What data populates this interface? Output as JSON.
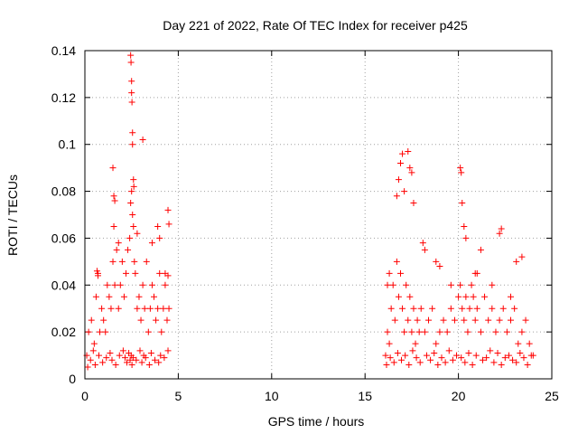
{
  "chart_data": {
    "type": "scatter",
    "title": "Day 221 of 2022, Rate Of TEC Index for receiver p425",
    "xlabel": "GPS time / hours",
    "ylabel": "ROTI / TECUs",
    "xlim": [
      0,
      25
    ],
    "ylim": [
      0,
      0.14
    ],
    "xticks": [
      "0",
      "5",
      "10",
      "15",
      "20",
      "25"
    ],
    "yticks": [
      "0",
      "0.02",
      "0.04",
      "0.06",
      "0.08",
      "0.1",
      "0.12",
      "0.14"
    ],
    "grid": true,
    "marker": "plus",
    "color": "#ff0000",
    "series": [
      {
        "x": [
          0.1,
          0.2,
          0.35,
          0.5,
          0.6,
          0.7,
          0.8,
          0.9,
          1.0,
          1.1,
          1.2,
          1.3,
          1.4,
          1.5,
          1.55,
          1.6,
          1.7,
          1.8,
          1.9,
          2.0,
          2.1,
          2.2,
          2.3,
          2.4,
          2.45,
          2.5,
          2.55,
          2.6,
          2.65,
          2.7,
          2.8,
          2.9,
          3.0,
          3.1,
          3.2,
          3.3,
          3.4,
          3.5,
          3.6,
          3.7,
          3.8,
          3.9,
          4.0,
          4.1,
          4.2,
          4.3,
          4.4,
          4.5,
          0.15,
          0.3,
          0.45,
          0.55,
          0.75,
          0.95,
          1.15,
          1.35,
          1.45,
          1.65,
          1.85,
          2.05,
          2.15,
          2.25,
          2.35,
          2.42,
          2.48,
          2.52,
          2.58,
          2.75,
          2.95,
          3.05,
          3.15,
          3.25,
          3.45,
          3.55,
          3.75,
          3.95,
          4.05,
          4.25,
          4.45,
          2.45,
          2.47,
          2.5,
          2.5,
          2.52,
          2.55,
          2.55,
          2.6,
          2.62,
          3.1,
          1.5,
          1.55,
          1.6,
          0.65,
          0.7,
          1.8,
          2.8,
          3.6,
          3.9,
          4.0,
          4.45,
          4.5,
          4.45,
          4.3,
          16.1,
          16.2,
          16.3,
          16.4,
          16.5,
          16.6,
          16.7,
          16.8,
          16.9,
          17.0,
          17.1,
          17.2,
          17.3,
          17.4,
          17.5,
          17.6,
          17.7,
          17.8,
          17.9,
          18.0,
          18.2,
          18.4,
          18.6,
          18.8,
          19.0,
          19.2,
          19.4,
          19.6,
          19.8,
          20.0,
          20.1,
          20.2,
          20.3,
          20.4,
          20.5,
          20.6,
          20.7,
          20.8,
          20.9,
          21.0,
          21.2,
          21.4,
          21.6,
          21.8,
          22.0,
          22.2,
          22.4,
          22.6,
          22.8,
          23.0,
          23.2,
          23.4,
          23.6,
          23.8,
          24.0,
          16.15,
          16.35,
          16.55,
          16.75,
          16.95,
          17.15,
          17.35,
          17.55,
          17.75,
          17.95,
          18.3,
          18.5,
          18.7,
          18.9,
          19.1,
          19.3,
          19.5,
          19.7,
          19.9,
          20.15,
          20.35,
          20.55,
          20.75,
          20.95,
          21.3,
          21.5,
          21.7,
          21.9,
          22.1,
          22.3,
          22.5,
          22.7,
          22.9,
          23.1,
          23.3,
          23.5,
          23.7,
          23.9,
          16.7,
          16.8,
          16.9,
          17.0,
          17.1,
          17.3,
          17.4,
          17.5,
          17.6,
          20.1,
          20.15,
          20.2,
          20.3,
          20.4,
          18.1,
          18.2,
          18.8,
          19.0,
          21.0,
          21.2,
          22.2,
          22.3,
          23.1,
          23.4,
          16.2,
          16.3,
          19.6,
          20.9,
          21.8,
          22.8
        ],
        "y": [
          0.01,
          0.02,
          0.025,
          0.015,
          0.035,
          0.045,
          0.02,
          0.03,
          0.025,
          0.02,
          0.04,
          0.035,
          0.03,
          0.05,
          0.065,
          0.04,
          0.055,
          0.03,
          0.04,
          0.05,
          0.035,
          0.045,
          0.055,
          0.06,
          0.075,
          0.08,
          0.07,
          0.065,
          0.05,
          0.045,
          0.03,
          0.035,
          0.025,
          0.04,
          0.03,
          0.05,
          0.02,
          0.03,
          0.04,
          0.035,
          0.025,
          0.03,
          0.045,
          0.02,
          0.03,
          0.04,
          0.025,
          0.03,
          0.005,
          0.008,
          0.012,
          0.006,
          0.01,
          0.007,
          0.009,
          0.011,
          0.008,
          0.006,
          0.01,
          0.012,
          0.009,
          0.007,
          0.011,
          0.008,
          0.01,
          0.006,
          0.009,
          0.008,
          0.012,
          0.007,
          0.01,
          0.009,
          0.006,
          0.011,
          0.008,
          0.007,
          0.01,
          0.009,
          0.012,
          0.138,
          0.135,
          0.127,
          0.122,
          0.118,
          0.105,
          0.1,
          0.085,
          0.082,
          0.102,
          0.09,
          0.078,
          0.076,
          0.046,
          0.044,
          0.058,
          0.062,
          0.058,
          0.065,
          0.06,
          0.072,
          0.066,
          0.044,
          0.045,
          0.01,
          0.02,
          0.015,
          0.03,
          0.04,
          0.025,
          0.05,
          0.035,
          0.045,
          0.03,
          0.02,
          0.04,
          0.025,
          0.035,
          0.02,
          0.03,
          0.015,
          0.025,
          0.02,
          0.03,
          0.02,
          0.025,
          0.03,
          0.015,
          0.02,
          0.025,
          0.02,
          0.03,
          0.025,
          0.035,
          0.04,
          0.03,
          0.025,
          0.035,
          0.02,
          0.03,
          0.04,
          0.035,
          0.025,
          0.03,
          0.02,
          0.035,
          0.025,
          0.03,
          0.02,
          0.025,
          0.03,
          0.02,
          0.025,
          0.03,
          0.015,
          0.02,
          0.025,
          0.015,
          0.01,
          0.006,
          0.009,
          0.007,
          0.011,
          0.008,
          0.01,
          0.006,
          0.012,
          0.009,
          0.007,
          0.01,
          0.008,
          0.011,
          0.006,
          0.009,
          0.007,
          0.012,
          0.008,
          0.01,
          0.009,
          0.007,
          0.011,
          0.006,
          0.01,
          0.008,
          0.009,
          0.012,
          0.007,
          0.011,
          0.006,
          0.009,
          0.01,
          0.008,
          0.007,
          0.011,
          0.009,
          0.006,
          0.01,
          0.078,
          0.085,
          0.092,
          0.096,
          0.08,
          0.097,
          0.09,
          0.088,
          0.075,
          0.09,
          0.088,
          0.075,
          0.065,
          0.06,
          0.058,
          0.055,
          0.05,
          0.048,
          0.045,
          0.055,
          0.062,
          0.064,
          0.05,
          0.052,
          0.04,
          0.045,
          0.04,
          0.045,
          0.04,
          0.035
        ]
      }
    ]
  }
}
